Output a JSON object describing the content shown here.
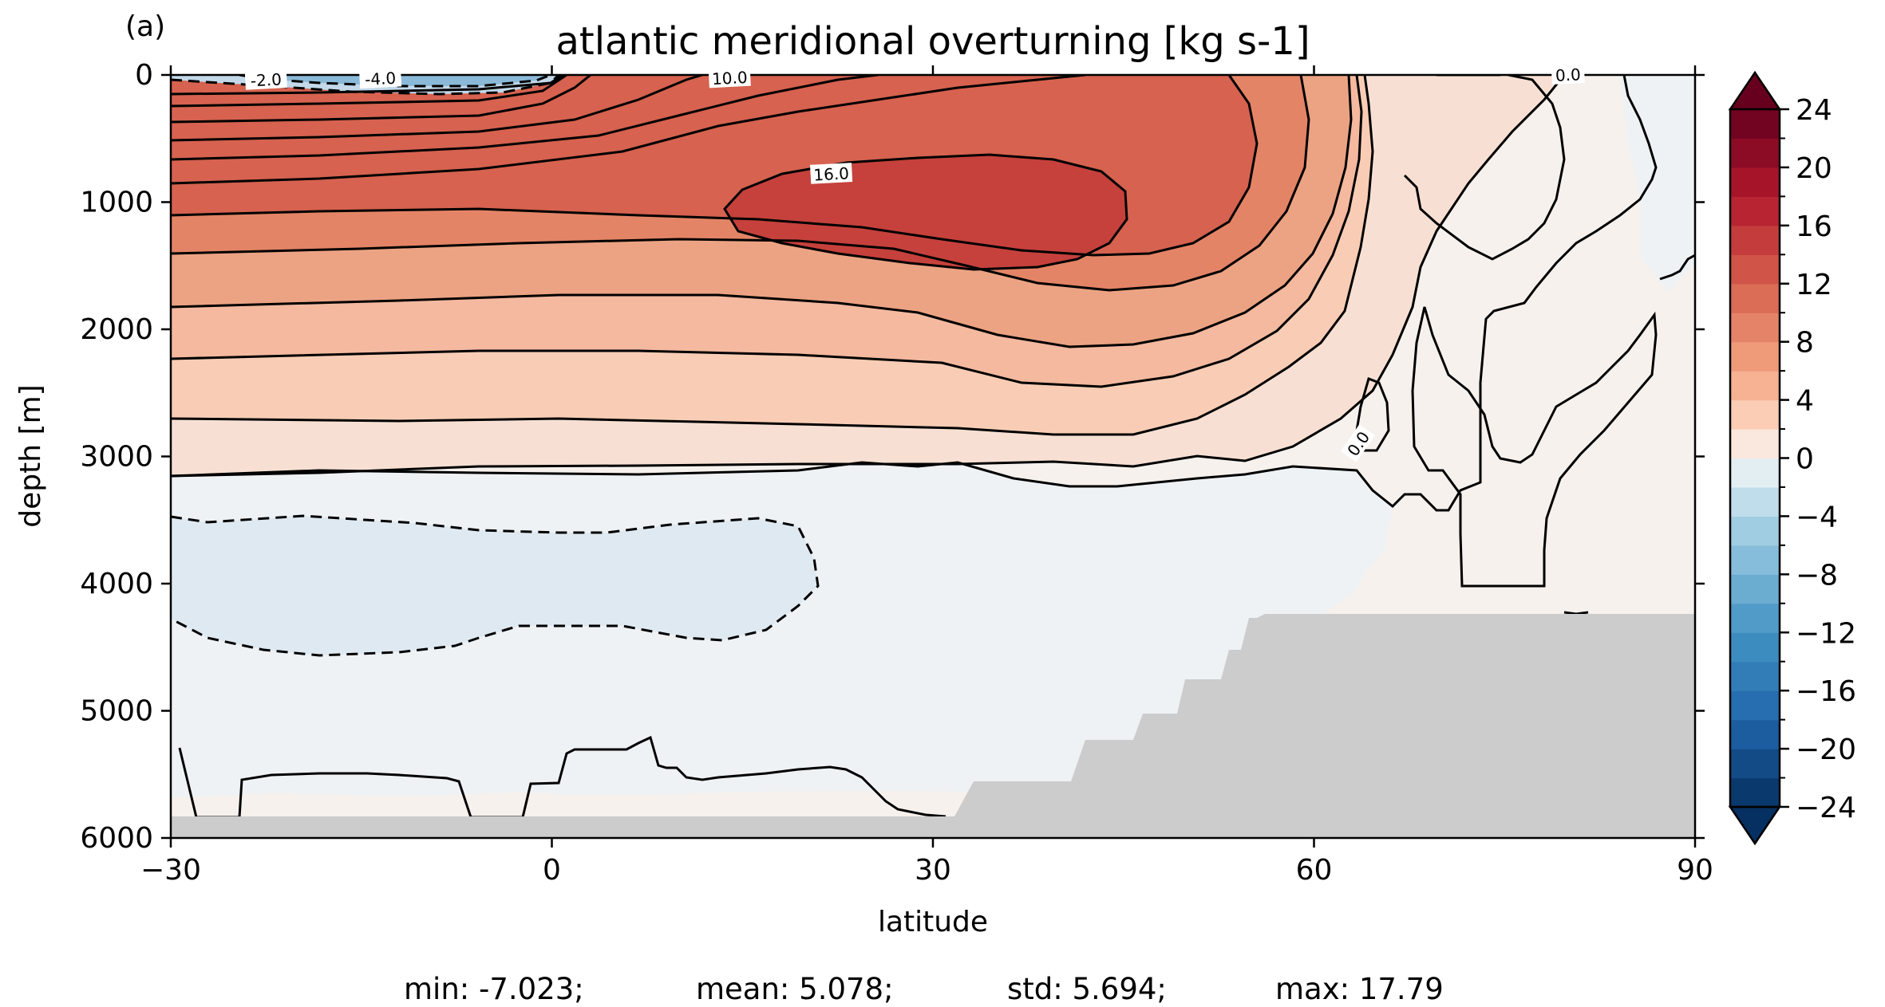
{
  "panel_label": "(a)",
  "chart_data": {
    "type": "contourf",
    "title": "atlantic meridional overturning [kg s-1]",
    "xlabel": "latitude",
    "ylabel": "depth [m]",
    "xlim": [
      -30,
      90
    ],
    "ylim": [
      6000,
      0
    ],
    "x_ticks": [
      -30,
      0,
      30,
      60,
      90
    ],
    "x_tick_labels": [
      "−30",
      "0",
      "30",
      "60",
      "90"
    ],
    "y_ticks": [
      0,
      1000,
      2000,
      3000,
      4000,
      5000,
      6000
    ],
    "y_tick_labels": [
      "0",
      "1000",
      "2000",
      "3000",
      "4000",
      "5000",
      "6000"
    ],
    "colorbar": {
      "cmap": "RdBu_r",
      "extend": "both",
      "vmin": -24,
      "vmax": 24,
      "level_step": 2,
      "ticks": [
        24,
        20,
        16,
        12,
        8,
        4,
        0,
        -4,
        -8,
        -12,
        -16,
        -20,
        -24
      ],
      "tick_labels": [
        "24",
        "20",
        "16",
        "12",
        "8",
        "4",
        "0",
        "−4",
        "−8",
        "−12",
        "−16",
        "−20",
        "−24"
      ]
    },
    "contour_labels": [
      {
        "text": "16.0",
        "lat": 22,
        "depth": 780
      },
      {
        "text": "10.0",
        "lat": 14,
        "depth": 25
      },
      {
        "text": "-4.0",
        "lat": -13.5,
        "depth": 30
      },
      {
        "text": "-2.0",
        "lat": -22.5,
        "depth": 40
      },
      {
        "text": "0.0",
        "lat": 63.5,
        "depth": 2900
      },
      {
        "text": "0.0",
        "lat": 80,
        "depth": 0
      }
    ],
    "core_value_max": 17.79,
    "land_mask_color": "#cccccc",
    "stats": {
      "min": "min: -7.023;",
      "mean": "mean: 5.078;",
      "std": "std: 5.694;",
      "max": "max: 17.79"
    }
  }
}
